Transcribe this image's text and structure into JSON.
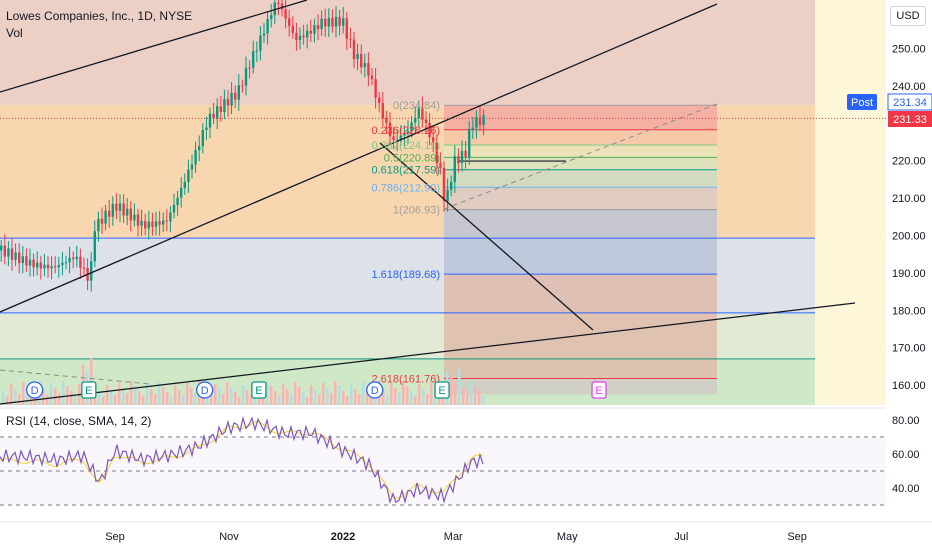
{
  "header": {
    "symbol_line": "Lowes Companies, Inc., 1D, NYSE",
    "volume_label": "Vol",
    "currency": "USD"
  },
  "price_axis": {
    "ticks": [
      {
        "value": 250,
        "label": "250.00"
      },
      {
        "value": 240,
        "label": "240.00"
      },
      {
        "value": 220,
        "label": "220.00"
      },
      {
        "value": 210,
        "label": "210.00"
      },
      {
        "value": 200,
        "label": "200.00"
      },
      {
        "value": 190,
        "label": "190.00"
      },
      {
        "value": 180,
        "label": "180.00"
      },
      {
        "value": 170,
        "label": "170.00"
      },
      {
        "value": 160,
        "label": "160.00"
      }
    ],
    "post_label": "Post",
    "post_price": "231.34",
    "last_price": "231.33",
    "post_color": "#2962ff",
    "last_color": "#f23645"
  },
  "time_axis": {
    "ticks": [
      "Sep",
      "Nov",
      "2022",
      "Mar",
      "May",
      "Jul",
      "Sep"
    ]
  },
  "rsi": {
    "title": "RSI (14, close, SMA, 14, 2)",
    "ticks": [
      {
        "value": 80,
        "label": "80.00"
      },
      {
        "value": 60,
        "label": "60.00"
      },
      {
        "value": 40,
        "label": "40.00"
      }
    ],
    "bands": [
      70,
      50,
      30
    ],
    "line_color": "#7e57c2",
    "ma_color": "#f0d32a",
    "series_dates": [
      "2021-07-15",
      "2021-08-01",
      "2021-08-15",
      "2021-08-24",
      "2021-09-01",
      "2021-09-15",
      "2021-10-01",
      "2021-10-15",
      "2021-11-01",
      "2021-11-15",
      "2021-12-01",
      "2021-12-15",
      "2022-01-01",
      "2022-01-15",
      "2022-01-28",
      "2022-02-10",
      "2022-02-24",
      "2022-03-04",
      "2022-03-11"
    ],
    "series_values": [
      56,
      54,
      57,
      41,
      60,
      55,
      58,
      63,
      75,
      78,
      72,
      73,
      63,
      55,
      34,
      41,
      37,
      48,
      58
    ]
  },
  "events": [
    {
      "kind": "dividend",
      "label": "D",
      "date": "2021-07-20"
    },
    {
      "kind": "earnings",
      "label": "E",
      "date": "2021-08-18"
    },
    {
      "kind": "dividend",
      "label": "D",
      "date": "2021-10-19"
    },
    {
      "kind": "earnings",
      "label": "E",
      "date": "2021-11-17"
    },
    {
      "kind": "dividend",
      "label": "D",
      "date": "2022-01-18"
    },
    {
      "kind": "earnings",
      "label": "E",
      "date": "2022-02-23"
    },
    {
      "kind": "earnings_upcoming",
      "label": "E",
      "date": "2022-05-18"
    }
  ],
  "fibonacci": {
    "levels": [
      {
        "ratio": 0,
        "price": 234.84,
        "label": "0(234.84)",
        "color": "#9e9e9e"
      },
      {
        "ratio": 0.236,
        "price": 228.26,
        "label": "0.236(228.26)",
        "color": "#f23645"
      },
      {
        "ratio": 0.382,
        "price": 224.19,
        "label": "0.382(224.19)",
        "color": "#81c784"
      },
      {
        "ratio": 0.5,
        "price": 220.89,
        "label": "0.5(220.89)",
        "color": "#4caf50"
      },
      {
        "ratio": 0.618,
        "price": 217.59,
        "label": "0.618(217.59)",
        "color": "#089981"
      },
      {
        "ratio": 0.786,
        "price": 212.9,
        "label": "0.786(212.90)",
        "color": "#64b5f6"
      },
      {
        "ratio": 1,
        "price": 206.93,
        "label": "1(206.93)",
        "color": "#9e9e9e"
      },
      {
        "ratio": 1.618,
        "price": 189.68,
        "label": "1.618(189.68)",
        "color": "#2962ff"
      },
      {
        "ratio": 2.618,
        "price": 161.76,
        "label": "2.618(161.76)",
        "color": "#f23645"
      }
    ]
  },
  "chart_data": {
    "type": "candlestick",
    "title": "Lowes Companies, Inc., 1D, NYSE",
    "xlabel": "",
    "ylabel": "",
    "ylim": [
      155,
      264
    ],
    "xlim": [
      "2021-07-04",
      "2022-10-05"
    ],
    "grid": false,
    "series": [
      {
        "name": "",
        "dates": [
          "2021-07-05",
          "2021-07-15",
          "2021-07-30",
          "2021-08-10",
          "2021-08-18",
          "2021-08-20",
          "2021-09-01",
          "2021-09-15",
          "2021-09-28",
          "2021-10-08",
          "2021-10-20",
          "2021-11-05",
          "2021-11-18",
          "2021-11-26",
          "2021-12-06",
          "2021-12-20",
          "2021-12-31",
          "2022-01-06",
          "2022-01-14",
          "2022-01-20",
          "2022-01-27",
          "2022-02-04",
          "2022-02-10",
          "2022-02-16",
          "2022-02-22",
          "2022-02-24",
          "2022-03-01",
          "2022-03-07",
          "2022-03-10"
        ],
        "close": [
          196,
          195,
          193,
          194,
          186,
          200,
          206,
          203,
          206,
          217,
          231,
          236,
          252,
          263,
          254,
          259,
          258,
          248,
          242,
          232,
          223,
          227,
          234,
          228,
          218,
          210,
          222,
          224,
          231.33
        ]
      }
    ],
    "events": [
      "D",
      "E",
      "D",
      "E",
      "D",
      "E",
      "E"
    ]
  }
}
